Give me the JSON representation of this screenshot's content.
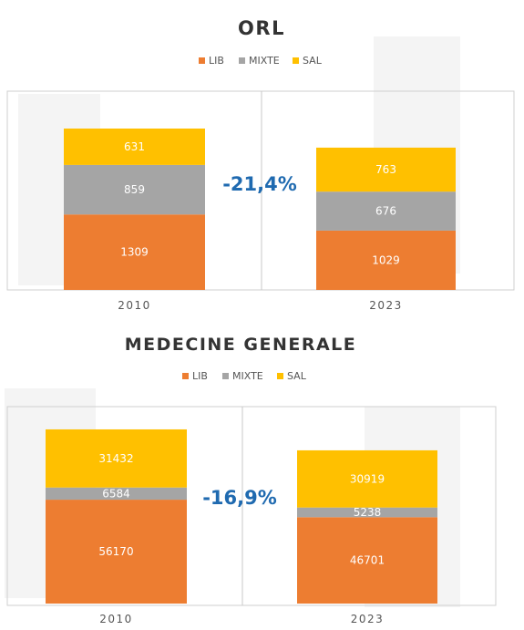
{
  "colors": {
    "lib": "#ed7d31",
    "mixte": "#a5a5a5",
    "sal": "#ffc000",
    "change": "#1f6ab0"
  },
  "chart_data": [
    {
      "type": "bar",
      "stacked": true,
      "title": "ORL",
      "legend_position": "top",
      "categories": [
        "2010",
        "2023"
      ],
      "series": [
        {
          "name": "LIB",
          "values": [
            1309,
            1029
          ]
        },
        {
          "name": "MIXTE",
          "values": [
            859,
            676
          ]
        },
        {
          "name": "SAL",
          "values": [
            631,
            763
          ]
        }
      ],
      "change_label": "-21,4%",
      "ylim": [
        0,
        3400
      ],
      "grid": false
    },
    {
      "type": "bar",
      "stacked": true,
      "title": "MEDECINE  GENERALE",
      "legend_position": "top",
      "categories": [
        "2010",
        "2023"
      ],
      "series": [
        {
          "name": "LIB",
          "values": [
            56170,
            46701
          ]
        },
        {
          "name": "MIXTE",
          "values": [
            6584,
            5238
          ]
        },
        {
          "name": "SAL",
          "values": [
            31432,
            30919
          ]
        }
      ],
      "change_label": "-16,9%",
      "ylim": [
        0,
        106000
      ],
      "grid": false
    }
  ]
}
